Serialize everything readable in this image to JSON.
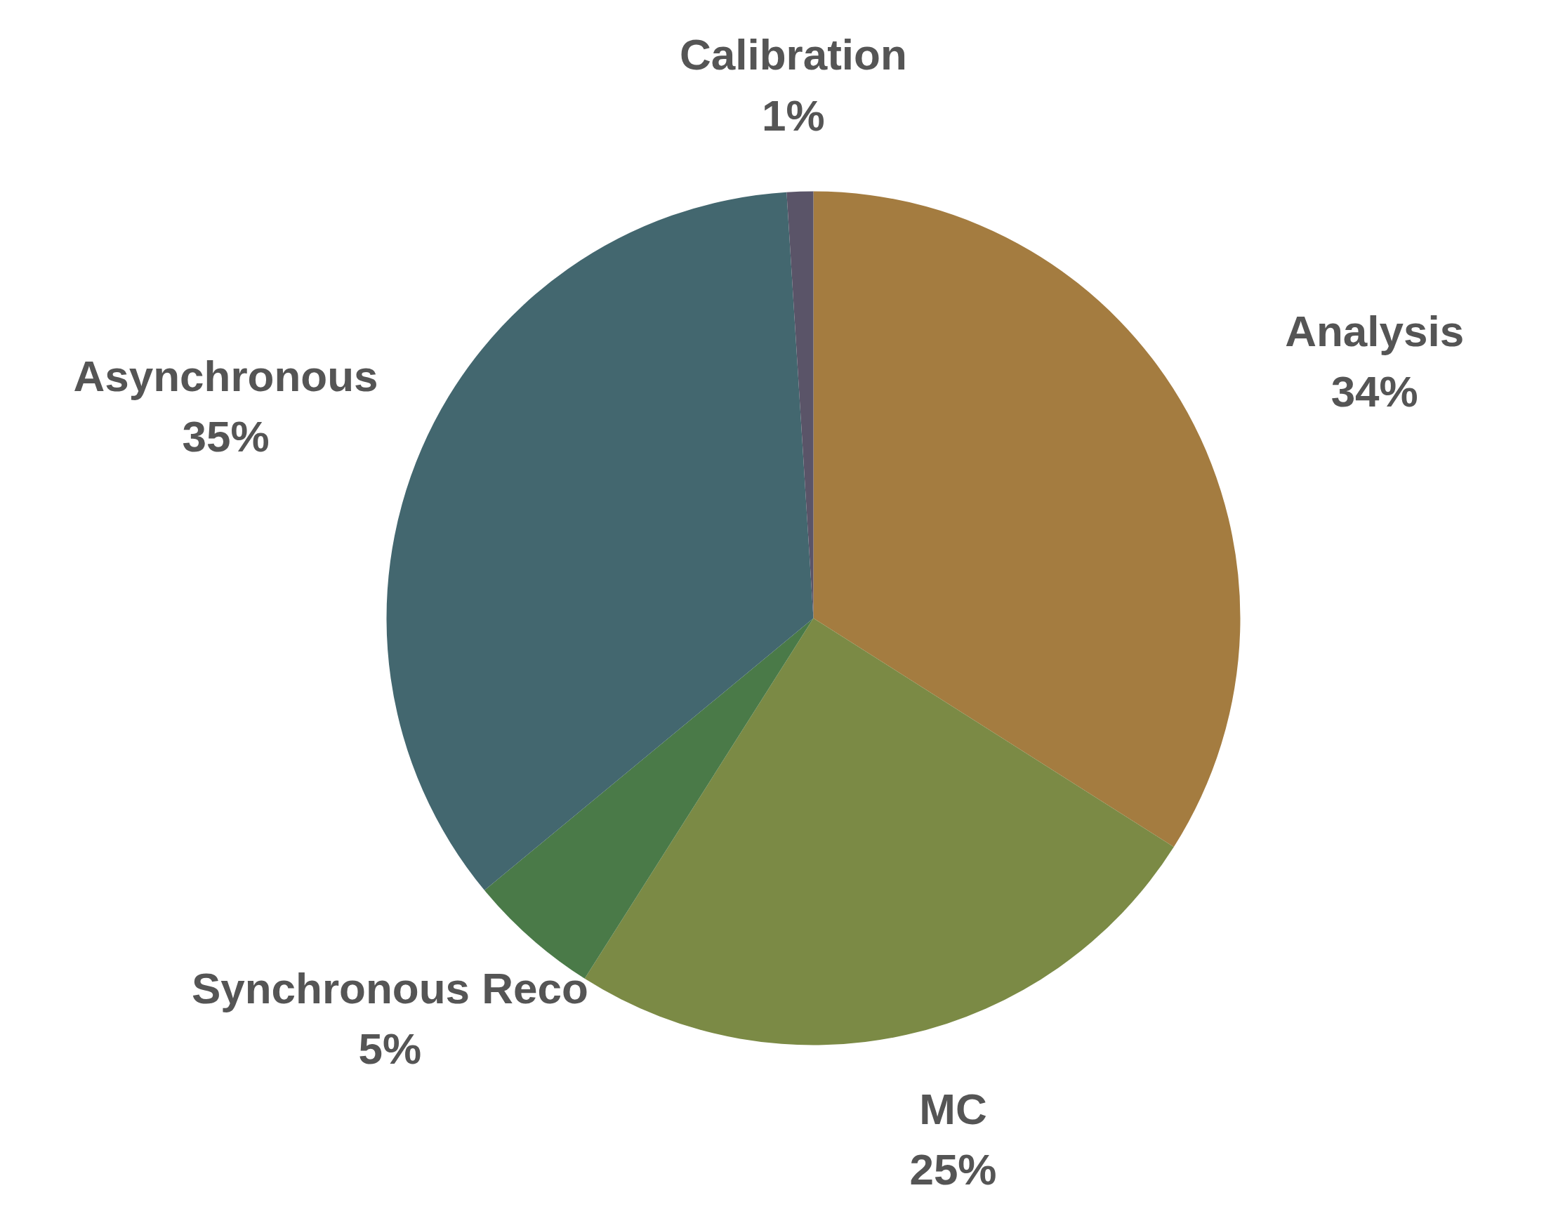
{
  "chart_data": {
    "type": "pie",
    "categories": [
      "Analysis",
      "MC",
      "Synchronous Reco",
      "Asynchronous",
      "Calibration"
    ],
    "values": [
      34,
      25,
      5,
      35,
      1
    ],
    "value_labels": [
      "34%",
      "25%",
      "5%",
      "35%",
      "1%"
    ],
    "colors": [
      "#a47c40",
      "#7b8a45",
      "#4a7a48",
      "#43676f",
      "#5a5468"
    ]
  }
}
